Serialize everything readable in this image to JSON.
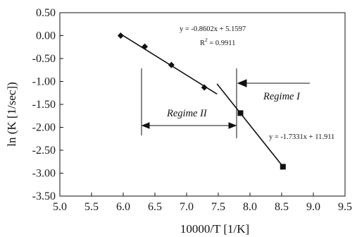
{
  "chart_data": {
    "type": "scatter",
    "xlabel": "10000/T [1/K]",
    "ylabel": "ln (K [1/sec])",
    "xlim": [
      5.0,
      9.5
    ],
    "ylim": [
      -3.5,
      0.5
    ],
    "x_ticks": [
      "5.0",
      "5.5",
      "6.0",
      "6.5",
      "7.0",
      "7.5",
      "8.0",
      "8.5",
      "9.0",
      "9.5"
    ],
    "y_ticks": [
      "0.50",
      "0.00",
      "-0.50",
      "-1.00",
      "-1.50",
      "-2.00",
      "-2.50",
      "-3.00",
      "-3.50"
    ],
    "grid": false,
    "series": [
      {
        "marker": "diamond",
        "x": [
          5.96,
          6.34,
          6.76,
          7.28
        ],
        "y": [
          0.0,
          -0.24,
          -0.64,
          -1.13
        ]
      },
      {
        "marker": "square",
        "x": [
          7.85,
          8.52
        ],
        "y": [
          -1.69,
          -2.86
        ]
      }
    ],
    "trendlines": [
      {
        "slope": -0.8602,
        "intercept": 5.1597,
        "x_range": [
          5.96,
          7.48
        ]
      },
      {
        "slope": -1.7331,
        "intercept": 11.911,
        "x_range": [
          7.48,
          8.52
        ]
      }
    ],
    "annotations": {
      "eq1": "y = -0.8602x + 5.1597",
      "r2_label": "R",
      "r2_sup": "2",
      "r2_value": " = 0.9911",
      "eq2": "y = -1.7331x + 11.911",
      "regime1": "Regime I",
      "regime2": "Regime II"
    }
  }
}
